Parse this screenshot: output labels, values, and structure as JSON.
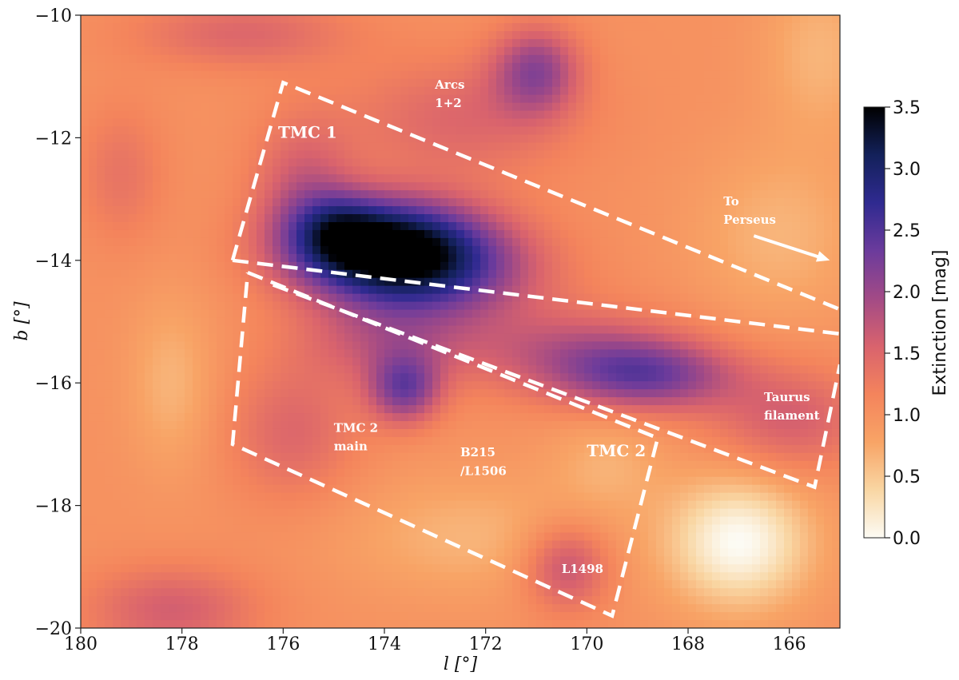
{
  "chart_data": {
    "type": "heatmap",
    "title": "",
    "xlabel": "l [°]",
    "ylabel": "b [°]",
    "xlim": [
      180,
      165
    ],
    "ylim": [
      -20,
      -10
    ],
    "x_ticks": [
      180,
      178,
      176,
      174,
      172,
      170,
      168,
      166
    ],
    "y_ticks": [
      -10,
      -12,
      -14,
      -16,
      -18,
      -20
    ],
    "x_tick_labels": [
      "180",
      "178",
      "176",
      "174",
      "172",
      "170",
      "168",
      "166"
    ],
    "y_tick_labels": [
      "−10",
      "−12",
      "−14",
      "−16",
      "−18",
      "−20"
    ],
    "grid": false,
    "colorbar": {
      "label": "Extinction [mag]",
      "range": [
        0.0,
        3.5
      ],
      "ticks": [
        0.0,
        0.5,
        1.0,
        1.5,
        2.0,
        2.5,
        3.0,
        3.5
      ],
      "tick_labels": [
        "0.0",
        "0.5",
        "1.0",
        "1.5",
        "2.0",
        "2.5",
        "3.0",
        "3.5"
      ],
      "colors": [
        "#fcfbf4",
        "#f9d6a3",
        "#f8a466",
        "#f4845c",
        "#d9636d",
        "#a24a86",
        "#6b3b9c",
        "#2f2a90",
        "#13215a",
        "#000000"
      ]
    },
    "background_level": 1.0,
    "extinction_features": [
      {
        "l": 174.0,
        "b": -13.8,
        "peak": 2.4,
        "sigma_l": 1.3,
        "sigma_b": 0.55
      },
      {
        "l": 174.9,
        "b": -13.5,
        "peak": 0.7,
        "sigma_l": 0.6,
        "sigma_b": 0.4
      },
      {
        "l": 172.8,
        "b": -14.2,
        "peak": 1.0,
        "sigma_l": 1.4,
        "sigma_b": 0.6
      },
      {
        "l": 175.6,
        "b": -12.8,
        "peak": 0.6,
        "sigma_l": 0.7,
        "sigma_b": 0.8
      },
      {
        "l": 171.0,
        "b": -10.9,
        "peak": 1.0,
        "sigma_l": 0.6,
        "sigma_b": 0.5
      },
      {
        "l": 176.8,
        "b": -10.3,
        "peak": 0.5,
        "sigma_l": 1.5,
        "sigma_b": 0.4
      },
      {
        "l": 172.5,
        "b": -11.7,
        "peak": 0.5,
        "sigma_l": 1.6,
        "sigma_b": 0.7
      },
      {
        "l": 173.6,
        "b": -16.1,
        "peak": 1.2,
        "sigma_l": 0.5,
        "sigma_b": 0.4
      },
      {
        "l": 174.0,
        "b": -15.3,
        "peak": 0.6,
        "sigma_l": 1.2,
        "sigma_b": 0.5
      },
      {
        "l": 168.8,
        "b": -15.9,
        "peak": 1.1,
        "sigma_l": 1.2,
        "sigma_b": 0.4
      },
      {
        "l": 170.2,
        "b": -15.5,
        "peak": 0.7,
        "sigma_l": 1.6,
        "sigma_b": 0.5
      },
      {
        "l": 166.0,
        "b": -16.6,
        "peak": 0.6,
        "sigma_l": 1.1,
        "sigma_b": 0.6
      },
      {
        "l": 170.4,
        "b": -19.0,
        "peak": 0.8,
        "sigma_l": 0.6,
        "sigma_b": 0.5
      },
      {
        "l": 178.2,
        "b": -19.7,
        "peak": 0.6,
        "sigma_l": 1.2,
        "sigma_b": 0.5
      },
      {
        "l": 175.8,
        "b": -16.8,
        "peak": 0.5,
        "sigma_l": 0.9,
        "sigma_b": 0.8
      },
      {
        "l": 179.2,
        "b": -12.6,
        "peak": 0.35,
        "sigma_l": 0.6,
        "sigma_b": 0.8
      },
      {
        "l": 167.0,
        "b": -18.6,
        "peak": -1.0,
        "sigma_l": 1.0,
        "sigma_b": 0.75
      },
      {
        "l": 166.2,
        "b": -13.6,
        "peak": -0.35,
        "sigma_l": 1.2,
        "sigma_b": 1.0
      },
      {
        "l": 165.4,
        "b": -10.6,
        "peak": -0.35,
        "sigma_l": 0.8,
        "sigma_b": 1.0
      },
      {
        "l": 178.2,
        "b": -16.0,
        "peak": -0.35,
        "sigma_l": 0.6,
        "sigma_b": 1.0
      },
      {
        "l": 172.3,
        "b": -18.5,
        "peak": -0.35,
        "sigma_l": 1.8,
        "sigma_b": 0.7
      },
      {
        "l": 169.6,
        "b": -17.3,
        "peak": -0.3,
        "sigma_l": 0.8,
        "sigma_b": 0.6
      }
    ],
    "regions": [
      {
        "name": "TMC 1",
        "corners": [
          [
            176.0,
            -11.1
          ],
          [
            165.0,
            -14.8
          ],
          [
            165.0,
            -14.8
          ],
          [
            177.0,
            -14.0
          ]
        ],
        "path": [
          [
            177.0,
            -14.0
          ],
          [
            176.0,
            -11.1
          ],
          [
            165.0,
            -14.8
          ]
        ],
        "path2": [
          [
            177.0,
            -14.0
          ],
          [
            165.0,
            -15.2
          ]
        ]
      },
      {
        "name": "TMC 2",
        "path": [
          [
            176.7,
            -14.2
          ],
          [
            168.6,
            -16.9
          ],
          [
            169.5,
            -19.8
          ],
          [
            177.0,
            -17.0
          ],
          [
            176.7,
            -14.2
          ]
        ]
      },
      {
        "name": "Taurus filament",
        "path": [
          [
            176.2,
            -14.4
          ],
          [
            165.5,
            -17.7
          ],
          [
            165.0,
            -15.7
          ]
        ]
      }
    ],
    "annotations": [
      {
        "text": "TMC 1",
        "l": 176.1,
        "b": -12.0,
        "size": 20
      },
      {
        "text": "Arcs",
        "l": 173.0,
        "b": -11.2,
        "size": 15
      },
      {
        "text": "1+2",
        "l": 173.0,
        "b": -11.5,
        "size": 15
      },
      {
        "text": "To",
        "l": 167.3,
        "b": -13.1,
        "size": 15
      },
      {
        "text": "Perseus",
        "l": 167.3,
        "b": -13.4,
        "size": 15
      },
      {
        "text": "Taurus",
        "l": 166.5,
        "b": -16.3,
        "size": 15
      },
      {
        "text": "filament",
        "l": 166.5,
        "b": -16.6,
        "size": 15
      },
      {
        "text": "TMC 2",
        "l": 175.0,
        "b": -16.8,
        "size": 15
      },
      {
        "text": "main",
        "l": 175.0,
        "b": -17.1,
        "size": 15
      },
      {
        "text": "B215",
        "l": 172.5,
        "b": -17.2,
        "size": 15
      },
      {
        "text": "/L1506",
        "l": 172.5,
        "b": -17.5,
        "size": 15
      },
      {
        "text": "TMC 2",
        "l": 170.0,
        "b": -17.2,
        "size": 20
      },
      {
        "text": "L1498",
        "l": 170.5,
        "b": -19.1,
        "size": 15
      }
    ],
    "arrow": {
      "from": [
        166.7,
        -13.6
      ],
      "to": [
        165.2,
        -14.0
      ]
    }
  }
}
